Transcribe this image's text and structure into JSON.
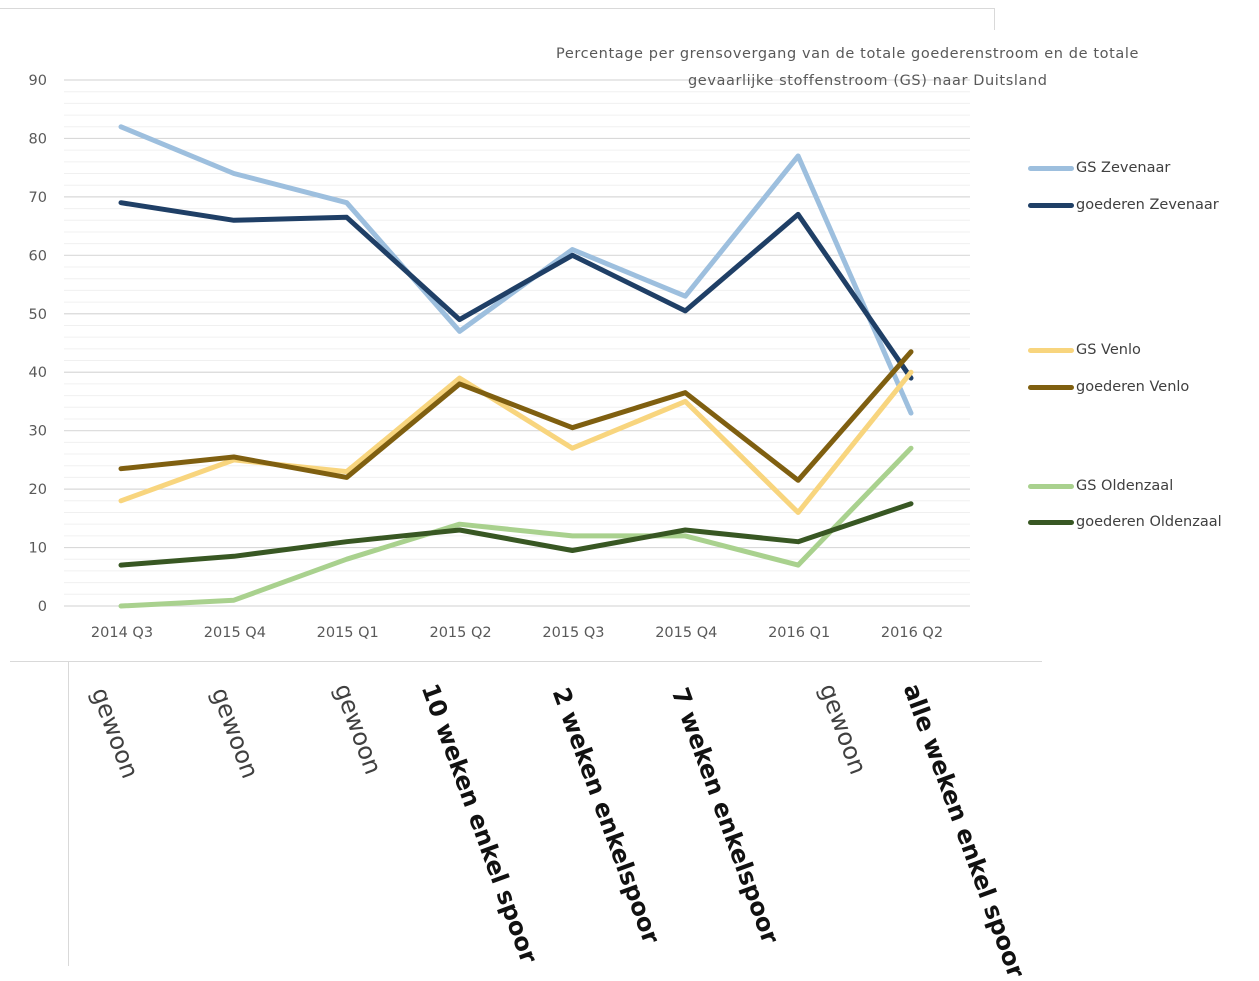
{
  "chart_data": {
    "type": "line",
    "title": [
      "Percentage per grensovergang van de totale goederenstroom en de totale",
      "gevaarlijke stoffenstroom (GS) naar Duitsland"
    ],
    "categories": [
      "2014 Q3",
      "2015 Q4",
      "2015 Q1",
      "2015 Q2",
      "2015 Q3",
      "2015 Q4",
      "2016 Q1",
      "2016 Q2"
    ],
    "ylim": [
      0,
      90
    ],
    "yticks": [
      "0",
      "10",
      "20",
      "30",
      "40",
      "50",
      "60",
      "70",
      "80",
      "90"
    ],
    "grid": true,
    "legend_position": "right",
    "series": [
      {
        "name": "GS Zevenaar",
        "color": "#9dbfde",
        "values": [
          82,
          74,
          69,
          47,
          61,
          53,
          77,
          33
        ]
      },
      {
        "name": "goederen Zevenaar",
        "color": "#1f3f66",
        "values": [
          69,
          66,
          66.5,
          49,
          60,
          50.5,
          67,
          39
        ]
      },
      {
        "name": "GS Venlo",
        "color": "#f8d57e",
        "values": [
          18,
          25,
          23,
          39,
          27,
          35,
          16,
          40
        ]
      },
      {
        "name": "goederen Venlo",
        "color": "#7f5f10",
        "values": [
          23.5,
          25.5,
          22,
          38,
          30.5,
          36.5,
          21.5,
          43.5
        ]
      },
      {
        "name": "GS Oldenzaal",
        "color": "#a9d18e",
        "values": [
          0,
          1,
          8,
          14,
          12,
          12,
          7,
          27
        ]
      },
      {
        "name": "goederen Oldenzaal",
        "color": "#385723",
        "values": [
          7,
          8.5,
          11,
          13,
          9.5,
          13,
          11,
          17.5
        ]
      }
    ]
  },
  "phase_labels": [
    {
      "text": "gewoon",
      "bold": false
    },
    {
      "text": "gewoon",
      "bold": false
    },
    {
      "text": "gewoon",
      "bold": false
    },
    {
      "text": "10 weken enkel spoor",
      "bold": true
    },
    {
      "text": "2 weken enkelspoor",
      "bold": true
    },
    {
      "text": "7 weken enkelspoor",
      "bold": true
    },
    {
      "text": "gewoon",
      "bold": false
    },
    {
      "text": "alle weken enkel spoor",
      "bold": true
    }
  ]
}
